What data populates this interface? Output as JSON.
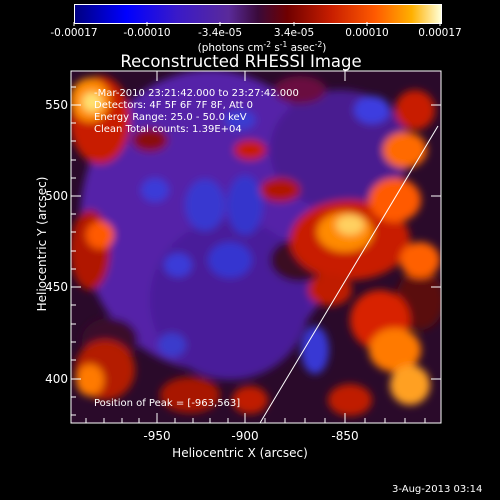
{
  "colorbar": {
    "tick_labels": [
      "-0.00017",
      "-0.00010",
      "-3.4e-05",
      "3.4e-05",
      "0.00010",
      "0.00017"
    ],
    "units_prefix": "(photons cm",
    "units_exp1": "-2",
    "units_mid1": " s",
    "units_exp2": "-1",
    "units_mid2": " asec",
    "units_exp3": "-2",
    "units_suffix": ")"
  },
  "plot": {
    "title": "Reconstructed RHESSI Image",
    "info_lines": [
      "-Mar-2010 23:21:42.000 to 23:27:42.000",
      "Detectors: 4F 5F 6F 7F 8F, Att 0",
      "Energy Range: 25.0 - 50.0 keV",
      "Clean     Total counts: 1.39E+04"
    ],
    "peak_label": "Position of Peak = [-963,563]",
    "xlabel": "Heliocentric X (arcsec)",
    "ylabel": "Heliocentric Y (arcsec)",
    "xticks": [
      "-950",
      "-900",
      "-850"
    ],
    "yticks": [
      "550",
      "500",
      "450",
      "400"
    ]
  },
  "footer": {
    "date": "3-Aug-2013 03:14"
  },
  "colors": {
    "background": "#000000",
    "axis": "#ffffff",
    "limb": "#ffffff"
  }
}
